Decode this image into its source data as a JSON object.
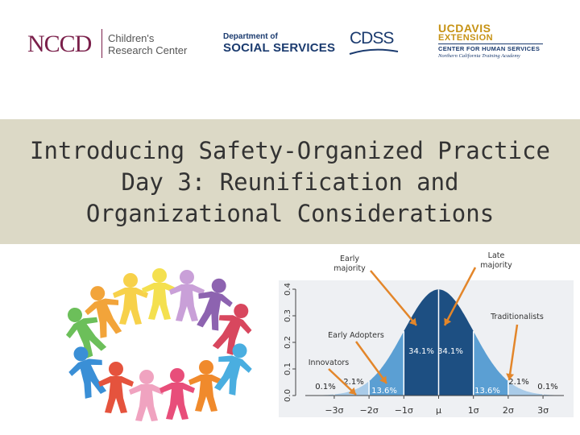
{
  "logos": {
    "ncc_mark": "NCCD",
    "ncc_line1": "Children's",
    "ncc_line2": "Research Center",
    "dss_small": "Department of",
    "dss_big": "SOCIAL SERVICES",
    "cdss": "CDSS",
    "ucd_top": "UCDAVIS",
    "ucd_ext": "EXTENSION",
    "ucd_chs": "CENTER FOR HUMAN SERVICES",
    "ucd_sub": "Northern California Training Academy"
  },
  "title": {
    "line1": "Introducing Safety-Organized Practice",
    "line2": "Day 3: Reunification and",
    "line3": "Organizational Considerations"
  },
  "colors": {
    "band": "#dcd9c6",
    "dark_blue": "#1d4f82",
    "light_blue": "#5b9fd3",
    "arrow": "#e3862a"
  },
  "chart_data": {
    "type": "area",
    "title": "",
    "ylabel": "",
    "ylim": [
      0,
      0.4
    ],
    "yticks": [
      "0.0",
      "0.1",
      "0.2",
      "0.3",
      "0.4"
    ],
    "xticks": [
      "−3σ",
      "−2σ",
      "−1σ",
      "μ",
      "1σ",
      "2σ",
      "3σ"
    ],
    "xlim": [
      -3.6,
      3.6
    ],
    "segments": [
      {
        "from": -3.6,
        "to": -3,
        "percent": "0.1%"
      },
      {
        "from": -3,
        "to": -2,
        "percent": "2.1%"
      },
      {
        "from": -2,
        "to": -1,
        "percent": "13.6%"
      },
      {
        "from": -1,
        "to": 0,
        "percent": "34.1%"
      },
      {
        "from": 0,
        "to": 1,
        "percent": "34.1%"
      },
      {
        "from": 1,
        "to": 2,
        "percent": "13.6%"
      },
      {
        "from": 2,
        "to": 3,
        "percent": "2.1%"
      },
      {
        "from": 3,
        "to": 3.6,
        "percent": "0.1%"
      }
    ],
    "annotations": [
      {
        "line1": "Early",
        "line2": "majority"
      },
      {
        "line1": "Late",
        "line2": "majority"
      },
      {
        "line1": "Traditionalists",
        "line2": ""
      },
      {
        "line1": "Early Adopters",
        "line2": ""
      },
      {
        "line1": "Innovators",
        "line2": ""
      }
    ]
  }
}
